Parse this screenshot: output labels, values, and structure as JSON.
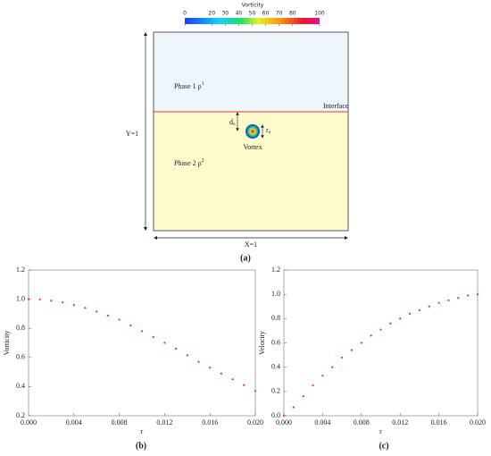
{
  "diagram": {
    "colorbar": {
      "title": "Vorticity",
      "lim": [
        0,
        100
      ],
      "ticks": [
        0,
        20,
        30,
        40,
        50,
        60,
        70,
        80,
        100
      ]
    },
    "phase1": {
      "text": "Phase 1 ρ",
      "sup": "1"
    },
    "phase2": {
      "text": "Phase 2 ρ",
      "sup": "2"
    },
    "interface": "Interface",
    "vortex": "Vortex",
    "d0": {
      "text": "d",
      "sub": "o"
    },
    "r0": {
      "text": "r",
      "sub": "o"
    },
    "y_label": "Y=1",
    "x_label": "X=1",
    "caption": "(a)"
  },
  "chart_data": [
    {
      "type": "scatter",
      "caption": "(b)",
      "xlabel": "r",
      "ylabel": "Vorticity",
      "color": "#e8312a",
      "x": [
        0,
        0.001,
        0.002,
        0.003,
        0.004,
        0.005,
        0.006,
        0.007,
        0.008,
        0.009,
        0.01,
        0.011,
        0.012,
        0.013,
        0.014,
        0.015,
        0.016,
        0.017,
        0.018,
        0.019,
        0.02
      ],
      "values": [
        1.0,
        0.998,
        0.99,
        0.978,
        0.96,
        0.94,
        0.915,
        0.888,
        0.86,
        0.82,
        0.78,
        0.74,
        0.7,
        0.66,
        0.615,
        0.57,
        0.53,
        0.49,
        0.45,
        0.41,
        0.37
      ],
      "xlim": [
        0,
        0.02
      ],
      "ylim": [
        0.2,
        1.2
      ],
      "xticks": [
        {
          "value": 0,
          "label": "0.000"
        },
        {
          "value": 0.004,
          "label": "0.004"
        },
        {
          "value": 0.008,
          "label": "0.008"
        },
        {
          "value": 0.012,
          "label": "0.012"
        },
        {
          "value": 0.016,
          "label": "0.016"
        },
        {
          "value": 0.02,
          "label": "0.020"
        }
      ],
      "yticks": [
        0.2,
        0.4,
        0.6,
        0.8,
        {
          "value": 1,
          "label": "1.0"
        },
        1.2
      ]
    },
    {
      "type": "scatter",
      "caption": "(c)",
      "xlabel": "r",
      "ylabel": "Velocity",
      "color": "#e8312a",
      "x": [
        0,
        0.001,
        0.002,
        0.003,
        0.004,
        0.005,
        0.006,
        0.007,
        0.008,
        0.009,
        0.01,
        0.011,
        0.012,
        0.013,
        0.014,
        0.015,
        0.016,
        0.017,
        0.018,
        0.019,
        0.02
      ],
      "values": [
        0,
        0.07,
        0.16,
        0.25,
        0.33,
        0.4,
        0.48,
        0.54,
        0.6,
        0.66,
        0.71,
        0.76,
        0.8,
        0.84,
        0.87,
        0.9,
        0.93,
        0.95,
        0.97,
        0.99,
        1.0
      ],
      "xlim": [
        0,
        0.02
      ],
      "ylim": [
        0,
        1.2
      ],
      "xticks": [
        {
          "value": 0,
          "label": "0.000"
        },
        {
          "value": 0.004,
          "label": "0.004"
        },
        {
          "value": 0.008,
          "label": "0.008"
        },
        {
          "value": 0.012,
          "label": "0.012"
        },
        {
          "value": 0.016,
          "label": "0.016"
        },
        {
          "value": 0.02,
          "label": "0.020"
        }
      ],
      "yticks": [
        {
          "value": 0,
          "label": "0.0"
        },
        0.2,
        0.4,
        0.6,
        0.8,
        {
          "value": 1,
          "label": "1.0"
        },
        1.2
      ]
    }
  ]
}
